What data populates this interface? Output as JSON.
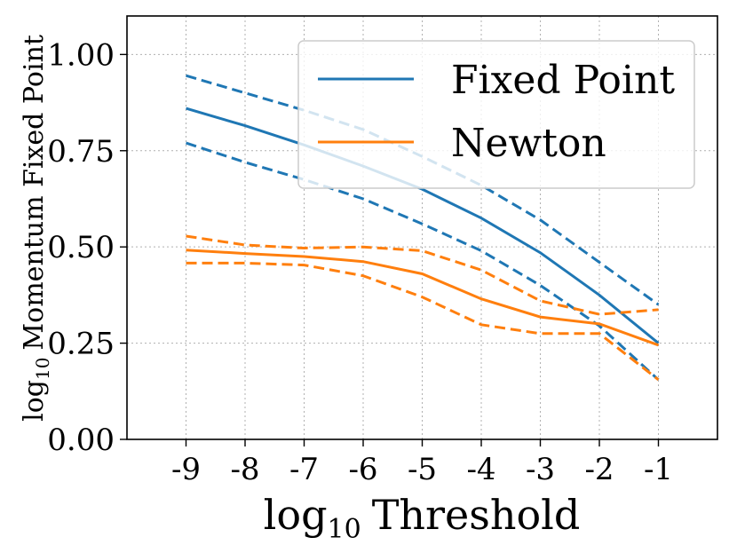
{
  "chart_data": {
    "type": "line",
    "x": [
      -9,
      -8,
      -7,
      -6,
      -5,
      -4,
      -3,
      -2,
      -1
    ],
    "xticks": [
      "-9",
      "-8",
      "-7",
      "-6",
      "-5",
      "-4",
      "-3",
      "-2",
      "-1"
    ],
    "xlim": [
      -10,
      0
    ],
    "ylim": [
      0.0,
      1.1
    ],
    "yticks": [
      "0.00",
      "0.25",
      "0.50",
      "0.75",
      "1.00"
    ],
    "yticks_values": [
      0.0,
      0.25,
      0.5,
      0.75,
      1.0
    ],
    "xlabel_main": "log",
    "xlabel_sub": "10",
    "xlabel_rest": "Threshold",
    "ylabel_main": "log",
    "ylabel_sub": "10",
    "ylabel_rest": "Momentum Fixed Point",
    "grid": true,
    "legend_position": "top-right",
    "series": [
      {
        "name": "Fixed Point",
        "color": "#1f77b4",
        "values": [
          0.86,
          0.815,
          0.765,
          0.71,
          0.65,
          0.575,
          0.485,
          0.375,
          0.25
        ],
        "upper": [
          0.945,
          0.9,
          0.855,
          0.805,
          0.735,
          0.66,
          0.57,
          0.46,
          0.35
        ],
        "lower": [
          0.77,
          0.72,
          0.675,
          0.625,
          0.56,
          0.49,
          0.4,
          0.295,
          0.155
        ]
      },
      {
        "name": "Newton",
        "color": "#ff7f0e",
        "values": [
          0.492,
          0.483,
          0.475,
          0.462,
          0.43,
          0.365,
          0.318,
          0.3,
          0.245
        ],
        "upper": [
          0.528,
          0.505,
          0.497,
          0.5,
          0.49,
          0.44,
          0.36,
          0.325,
          0.337
        ],
        "lower": [
          0.458,
          0.458,
          0.453,
          0.425,
          0.37,
          0.298,
          0.275,
          0.275,
          0.155
        ]
      }
    ]
  }
}
